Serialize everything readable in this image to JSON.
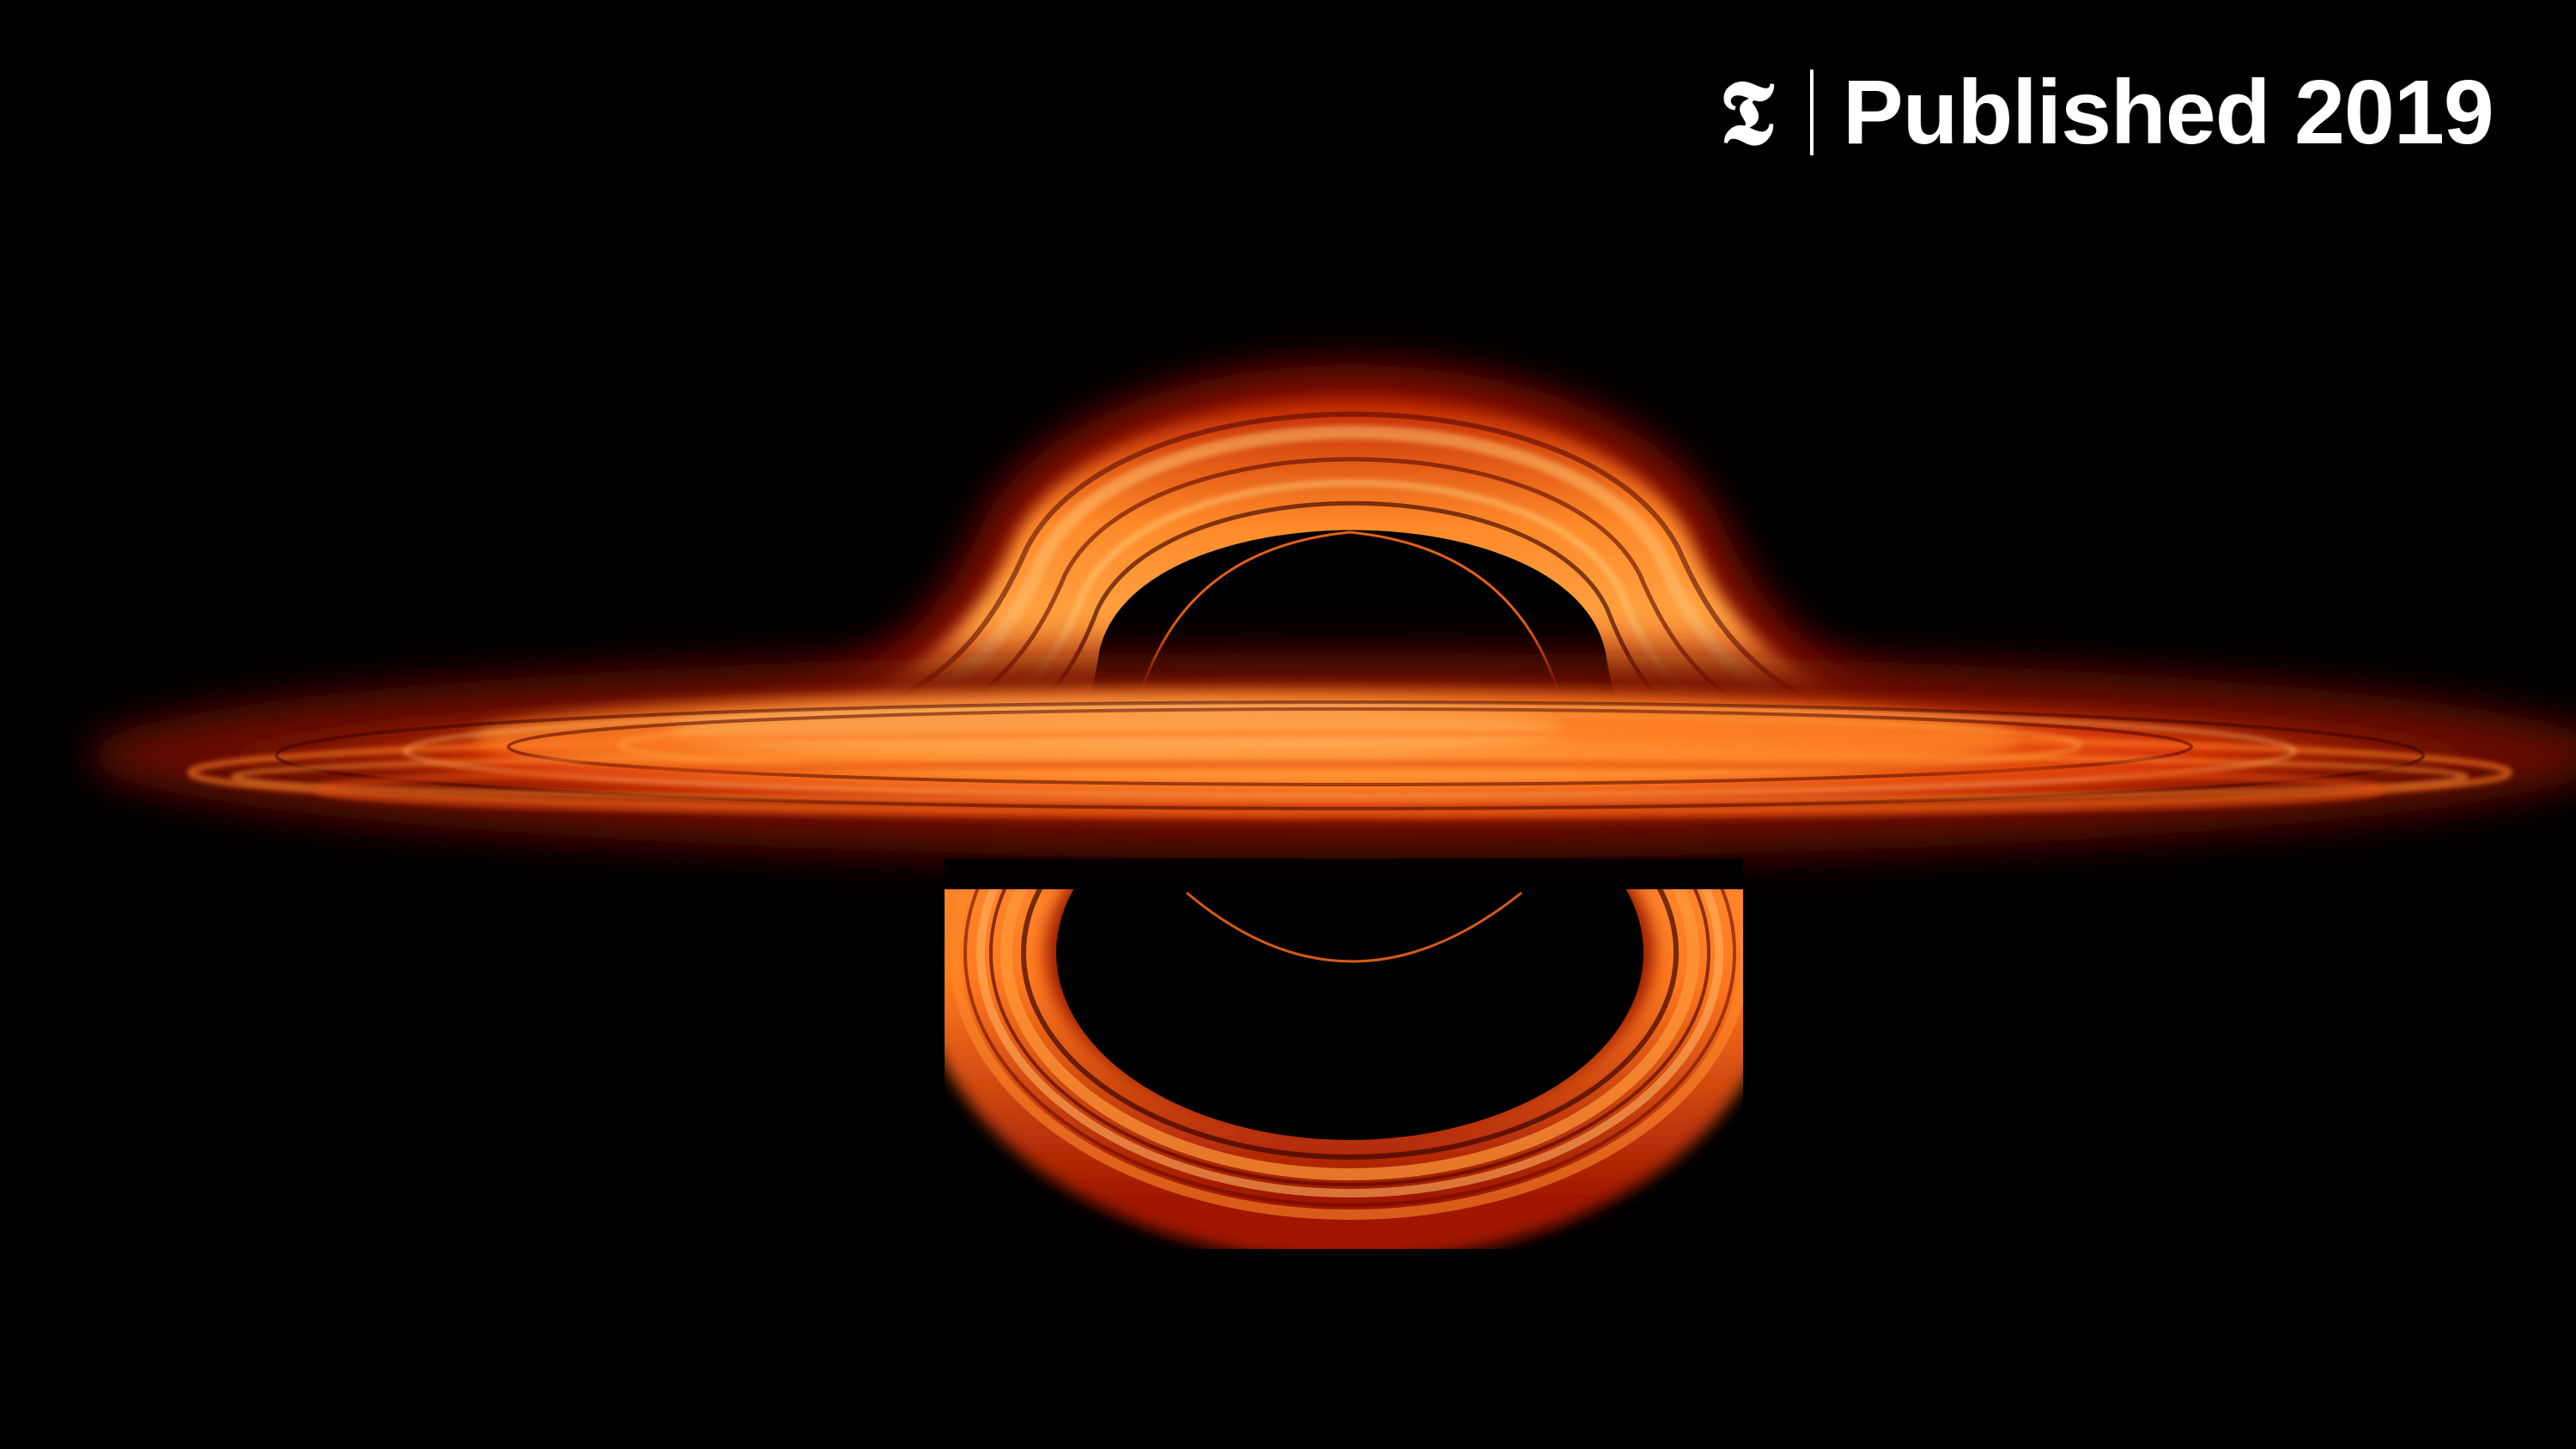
{
  "badge": {
    "logo_glyph": "𝕿",
    "logo_icon": "nyt-t-logo-icon",
    "label": "Published 2019"
  },
  "image": {
    "subject": "black-hole-accretion-disk",
    "colors": {
      "background": "#000000",
      "disk_outer": "#7a0a00",
      "disk_mid": "#d63a06",
      "disk_bright": "#ff8a2a",
      "disk_hot": "#ffc070",
      "photon_ring": "#ff6a1a"
    }
  }
}
